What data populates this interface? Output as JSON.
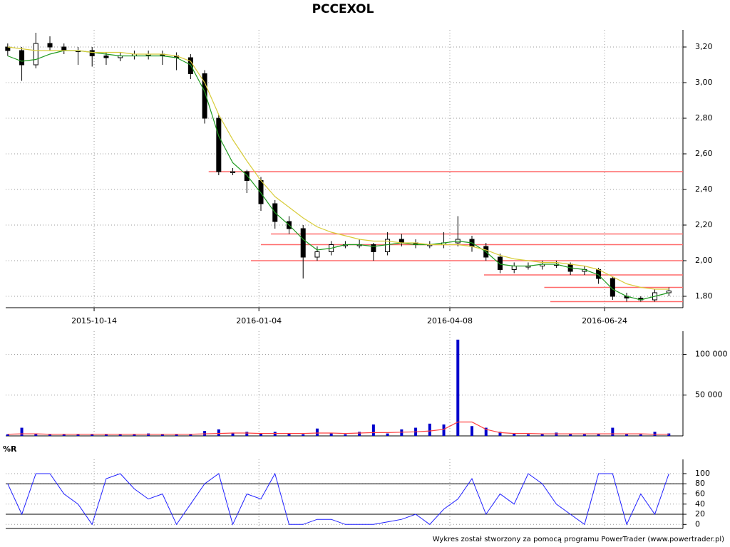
{
  "chart_data": [
    {
      "type": "candlestick",
      "title": "PCCEXOL",
      "x": [
        "2015-09-01",
        "2015-09-08",
        "2015-09-15",
        "2015-09-22",
        "2015-09-29",
        "2015-10-06",
        "2015-10-13",
        "2015-10-20",
        "2015-10-27",
        "2015-11-03",
        "2015-11-10",
        "2015-11-17",
        "2015-11-24",
        "2015-12-01",
        "2015-12-08",
        "2015-12-15",
        "2015-12-22",
        "2015-12-29",
        "2016-01-05",
        "2016-01-12",
        "2016-01-19",
        "2016-01-26",
        "2016-02-02",
        "2016-02-09",
        "2016-02-16",
        "2016-02-23",
        "2016-03-01",
        "2016-03-08",
        "2016-03-15",
        "2016-03-22",
        "2016-03-29",
        "2016-04-05",
        "2016-04-12",
        "2016-04-19",
        "2016-04-26",
        "2016-05-03",
        "2016-05-10",
        "2016-05-17",
        "2016-05-24",
        "2016-05-31",
        "2016-06-07",
        "2016-06-14",
        "2016-06-21",
        "2016-06-28",
        "2016-07-05",
        "2016-07-12",
        "2016-07-19",
        "2016-07-26"
      ],
      "open": [
        3.2,
        3.18,
        3.1,
        3.22,
        3.2,
        3.18,
        3.18,
        3.15,
        3.14,
        3.15,
        3.16,
        3.16,
        3.15,
        3.14,
        3.05,
        2.8,
        2.5,
        2.5,
        2.45,
        2.32,
        2.22,
        2.18,
        2.02,
        2.05,
        2.09,
        2.09,
        2.09,
        2.05,
        2.12,
        2.1,
        2.09,
        2.09,
        2.1,
        2.12,
        2.08,
        2.02,
        1.95,
        1.97,
        1.97,
        1.98,
        1.98,
        1.94,
        1.95,
        1.9,
        1.8,
        1.79,
        1.78,
        1.82
      ],
      "high": [
        3.22,
        3.2,
        3.28,
        3.26,
        3.22,
        3.2,
        3.2,
        3.17,
        3.17,
        3.18,
        3.18,
        3.18,
        3.17,
        3.16,
        3.07,
        2.82,
        2.52,
        2.51,
        2.47,
        2.34,
        2.25,
        2.2,
        2.08,
        2.11,
        2.11,
        2.12,
        2.1,
        2.16,
        2.15,
        2.12,
        2.11,
        2.16,
        2.25,
        2.14,
        2.1,
        2.04,
        1.99,
        1.99,
        2.0,
        2.0,
        1.99,
        1.97,
        1.96,
        1.91,
        1.82,
        1.8,
        1.84,
        1.85
      ],
      "low": [
        3.15,
        3.01,
        3.08,
        3.18,
        3.16,
        3.1,
        3.09,
        3.1,
        3.12,
        3.13,
        3.13,
        3.1,
        3.07,
        3.02,
        2.77,
        2.48,
        2.48,
        2.38,
        2.28,
        2.18,
        2.15,
        1.9,
        2.0,
        2.03,
        2.07,
        2.07,
        2.0,
        2.03,
        2.08,
        2.07,
        2.07,
        2.07,
        2.08,
        2.05,
        2.0,
        1.93,
        1.93,
        1.95,
        1.95,
        1.96,
        1.92,
        1.92,
        1.87,
        1.78,
        1.77,
        1.77,
        1.77,
        1.8
      ],
      "close": [
        3.18,
        3.1,
        3.22,
        3.2,
        3.18,
        3.18,
        3.15,
        3.14,
        3.15,
        3.16,
        3.16,
        3.15,
        3.14,
        3.05,
        2.8,
        2.5,
        2.5,
        2.45,
        2.32,
        2.22,
        2.18,
        2.02,
        2.05,
        2.09,
        2.09,
        2.09,
        2.05,
        2.12,
        2.1,
        2.09,
        2.09,
        2.1,
        2.12,
        2.08,
        2.02,
        1.95,
        1.97,
        1.97,
        1.98,
        1.98,
        1.94,
        1.95,
        1.9,
        1.8,
        1.79,
        1.78,
        1.82,
        1.83
      ],
      "series": [
        {
          "color": "#1f9a1f",
          "values": [
            3.15,
            3.12,
            3.13,
            3.16,
            3.18,
            3.18,
            3.17,
            3.16,
            3.15,
            3.15,
            3.15,
            3.15,
            3.14,
            3.1,
            2.95,
            2.7,
            2.55,
            2.48,
            2.38,
            2.27,
            2.2,
            2.12,
            2.06,
            2.07,
            2.09,
            2.09,
            2.08,
            2.09,
            2.1,
            2.09,
            2.09,
            2.1,
            2.11,
            2.1,
            2.05,
            1.98,
            1.97,
            1.97,
            1.98,
            1.98,
            1.96,
            1.95,
            1.92,
            1.84,
            1.8,
            1.78,
            1.8,
            1.82
          ]
        },
        {
          "color": "#d8cc3a",
          "values": [
            3.2,
            3.19,
            3.18,
            3.18,
            3.18,
            3.18,
            3.17,
            3.17,
            3.17,
            3.16,
            3.16,
            3.16,
            3.15,
            3.12,
            3.0,
            2.82,
            2.68,
            2.56,
            2.45,
            2.36,
            2.3,
            2.24,
            2.19,
            2.16,
            2.14,
            2.12,
            2.11,
            2.11,
            2.1,
            2.1,
            2.09,
            2.09,
            2.09,
            2.08,
            2.06,
            2.03,
            2.01,
            2.0,
            1.99,
            1.99,
            1.98,
            1.97,
            1.95,
            1.91,
            1.87,
            1.85,
            1.84,
            1.84
          ]
        }
      ],
      "levels": [
        {
          "value": 2.5,
          "from": "2015-12-10"
        },
        {
          "value": 2.15,
          "from": "2016-01-10"
        },
        {
          "value": 2.09,
          "from": "2016-01-05"
        },
        {
          "value": 2.0,
          "from": "2015-12-31"
        },
        {
          "value": 1.92,
          "from": "2016-04-25"
        },
        {
          "value": 1.85,
          "from": "2016-05-25"
        },
        {
          "value": 1.77,
          "from": "2016-05-28"
        }
      ],
      "level_color": "#ff6a6a",
      "xlim": [
        "2015-08-31",
        "2016-08-02"
      ],
      "xticks": [
        "2015-10-14",
        "2016-01-04",
        "2016-04-08",
        "2016-06-24"
      ],
      "ylim": [
        1.736,
        3.276
      ],
      "yticks": [
        {
          "value": 1.8,
          "label": "1,80"
        },
        {
          "value": 2.0,
          "label": "2,00"
        },
        {
          "value": 2.2,
          "label": "2,20"
        },
        {
          "value": 2.4,
          "label": "2,40"
        },
        {
          "value": 2.6,
          "label": "2,60"
        },
        {
          "value": 2.8,
          "label": "2,80"
        },
        {
          "value": 3.0,
          "label": "3,00"
        },
        {
          "value": 3.2,
          "label": "3,20"
        }
      ],
      "grid": true
    },
    {
      "type": "bar",
      "x": [
        "2015-09-01",
        "2015-09-08",
        "2015-09-15",
        "2015-09-22",
        "2015-09-29",
        "2015-10-06",
        "2015-10-13",
        "2015-10-20",
        "2015-10-27",
        "2015-11-03",
        "2015-11-10",
        "2015-11-17",
        "2015-11-24",
        "2015-12-01",
        "2015-12-08",
        "2015-12-15",
        "2015-12-22",
        "2015-12-29",
        "2016-01-05",
        "2016-01-12",
        "2016-01-19",
        "2016-01-26",
        "2016-02-02",
        "2016-02-09",
        "2016-02-16",
        "2016-02-23",
        "2016-03-01",
        "2016-03-08",
        "2016-03-15",
        "2016-03-22",
        "2016-03-29",
        "2016-04-05",
        "2016-04-12",
        "2016-04-19",
        "2016-04-26",
        "2016-05-03",
        "2016-05-10",
        "2016-05-17",
        "2016-05-24",
        "2016-05-31",
        "2016-06-07",
        "2016-06-14",
        "2016-06-21",
        "2016-06-28",
        "2016-07-05",
        "2016-07-12",
        "2016-07-19",
        "2016-07-26"
      ],
      "values": [
        2000,
        10000,
        3000,
        2000,
        2000,
        2000,
        2000,
        2000,
        2000,
        2000,
        3000,
        2000,
        2000,
        2000,
        6000,
        8000,
        4000,
        5000,
        3000,
        5000,
        3000,
        2000,
        9000,
        3000,
        2000,
        5000,
        14000,
        3000,
        8000,
        10000,
        15000,
        14000,
        118000,
        12000,
        10000,
        5000,
        3000,
        2000,
        3000,
        4000,
        3000,
        2000,
        3000,
        10000,
        2000,
        2000,
        5000,
        3000
      ],
      "color": "#0000cc",
      "series": [
        {
          "color": "#ff4040",
          "values": [
            2000,
            2500,
            2500,
            2000,
            2000,
            2000,
            2000,
            2000,
            2000,
            2000,
            2000,
            2000,
            2000,
            2000,
            2500,
            3000,
            3500,
            3500,
            3000,
            3000,
            3000,
            3000,
            3500,
            3500,
            3000,
            3500,
            4000,
            4000,
            4500,
            5000,
            6000,
            8000,
            17000,
            17000,
            8000,
            4000,
            3000,
            3000,
            2500,
            2500,
            2500,
            2500,
            2500,
            2500,
            2500,
            2500,
            2000,
            2000
          ]
        }
      ],
      "xlim": [
        "2015-08-31",
        "2016-08-02"
      ],
      "ylim": [
        0,
        124000
      ],
      "yticks": [
        {
          "value": 50000,
          "label": "50 000"
        },
        {
          "value": 100000,
          "label": "100 000"
        }
      ],
      "grid": true
    },
    {
      "type": "line",
      "y_label": "%R",
      "x": [
        "2015-09-01",
        "2015-09-08",
        "2015-09-15",
        "2015-09-22",
        "2015-09-29",
        "2015-10-06",
        "2015-10-13",
        "2015-10-20",
        "2015-10-27",
        "2015-11-03",
        "2015-11-10",
        "2015-11-17",
        "2015-11-24",
        "2015-12-01",
        "2015-12-08",
        "2015-12-15",
        "2015-12-22",
        "2015-12-29",
        "2016-01-05",
        "2016-01-12",
        "2016-01-19",
        "2016-01-26",
        "2016-02-02",
        "2016-02-09",
        "2016-02-16",
        "2016-02-23",
        "2016-03-01",
        "2016-03-08",
        "2016-03-15",
        "2016-03-22",
        "2016-03-29",
        "2016-04-05",
        "2016-04-12",
        "2016-04-19",
        "2016-04-26",
        "2016-05-03",
        "2016-05-10",
        "2016-05-17",
        "2016-05-24",
        "2016-05-31",
        "2016-06-07",
        "2016-06-14",
        "2016-06-21",
        "2016-06-28",
        "2016-07-05",
        "2016-07-12",
        "2016-07-19",
        "2016-07-26"
      ],
      "values": [
        80,
        20,
        100,
        100,
        60,
        40,
        0,
        90,
        100,
        70,
        50,
        60,
        0,
        40,
        80,
        100,
        0,
        60,
        50,
        100,
        0,
        0,
        10,
        10,
        0,
        0,
        0,
        5,
        10,
        20,
        0,
        30,
        50,
        90,
        20,
        60,
        40,
        100,
        80,
        40,
        20,
        0,
        100,
        100,
        0,
        60,
        20,
        100
      ],
      "color": "#2020ff",
      "levels": [
        20,
        80
      ],
      "xlim": [
        "2015-08-31",
        "2016-08-02"
      ],
      "ylim": [
        -8,
        121
      ],
      "yticks": [
        0,
        20,
        40,
        60,
        80,
        100
      ],
      "grid": true
    }
  ],
  "footer": "Wykres został stworzony za pomocą programu PowerTrader (www.powertrader.pl)"
}
